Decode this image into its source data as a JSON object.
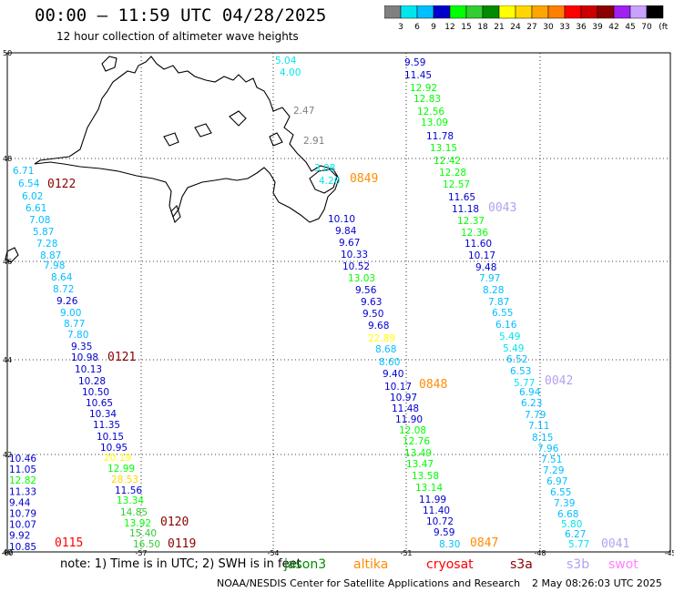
{
  "title": "00:00 – 11:59 UTC 04/28/2025",
  "subtitle": "12 hour collection of altimeter wave heights",
  "colorbar": {
    "unit_label": "(ft)",
    "ticks": [
      "3",
      "6",
      "9",
      "12",
      "15",
      "18",
      "21",
      "24",
      "27",
      "30",
      "33",
      "36",
      "39",
      "42",
      "45",
      "70"
    ],
    "colors": [
      "#808080",
      "#00e5ee",
      "#00bfff",
      "#0000cd",
      "#00ff00",
      "#32cd32",
      "#008b00",
      "#ffff00",
      "#ffd700",
      "#ffa500",
      "#ff7f00",
      "#ff0000",
      "#cd0000",
      "#8b0000",
      "#a020f0",
      "#c8a2ff",
      "#000000"
    ]
  },
  "axes": {
    "lat_labels": [
      "50",
      "48",
      "46",
      "44",
      "42",
      "40"
    ],
    "lon_labels": [
      "-60",
      "-57",
      "-54",
      "-51",
      "-48",
      "-45"
    ]
  },
  "tracks": [
    {
      "name": "jason3-left",
      "color": "#0000cd",
      "values": [
        {
          "v": "6.71",
          "c": "#00bfff"
        },
        {
          "v": "6.54",
          "c": "#00bfff"
        },
        {
          "v": "6.02",
          "c": "#00bfff"
        },
        {
          "v": "6.61",
          "c": "#00bfff"
        },
        {
          "v": "7.08",
          "c": "#00bfff"
        },
        {
          "v": "5.87",
          "c": "#00bfff"
        },
        {
          "v": "7.28",
          "c": "#00bfff"
        },
        {
          "v": "8.87",
          "c": "#00bfff"
        },
        {
          "v": "7.98",
          "c": "#00bfff"
        },
        {
          "v": "8.64",
          "c": "#00bfff"
        },
        {
          "v": "8.72",
          "c": "#00bfff"
        },
        {
          "v": "9.26",
          "c": "#0000cd"
        },
        {
          "v": "9.00",
          "c": "#00bfff"
        },
        {
          "v": "8.77",
          "c": "#00bfff"
        },
        {
          "v": "7.80",
          "c": "#00bfff"
        },
        {
          "v": "9.35",
          "c": "#0000cd"
        },
        {
          "v": "10.98",
          "c": "#0000cd"
        },
        {
          "v": "10.13",
          "c": "#0000cd"
        },
        {
          "v": "10.28",
          "c": "#0000cd"
        },
        {
          "v": "10.50",
          "c": "#0000cd"
        },
        {
          "v": "10.65",
          "c": "#0000cd"
        },
        {
          "v": "10.34",
          "c": "#0000cd"
        },
        {
          "v": "11.35",
          "c": "#0000cd"
        },
        {
          "v": "10.15",
          "c": "#0000cd"
        },
        {
          "v": "10.95",
          "c": "#0000cd"
        },
        {
          "v": "20.19",
          "c": "#ffff00"
        },
        {
          "v": "12.99",
          "c": "#00ff00"
        },
        {
          "v": "28.53",
          "c": "#ffd700"
        },
        {
          "v": "11.56",
          "c": "#0000cd"
        },
        {
          "v": "13.34",
          "c": "#00ff00"
        },
        {
          "v": "14.85",
          "c": "#32cd32"
        },
        {
          "v": "13.92",
          "c": "#00ff00"
        },
        {
          "v": "15.40",
          "c": "#32cd32"
        },
        {
          "v": "16.50",
          "c": "#32cd32"
        }
      ]
    },
    {
      "name": "bottom-left-column",
      "values": [
        {
          "v": "10.46",
          "c": "#0000cd"
        },
        {
          "v": "11.05",
          "c": "#0000cd"
        },
        {
          "v": "12.82",
          "c": "#00ff00"
        },
        {
          "v": "11.33",
          "c": "#0000cd"
        },
        {
          "v": "9.44",
          "c": "#0000cd"
        },
        {
          "v": "10.79",
          "c": "#0000cd"
        },
        {
          "v": "10.07",
          "c": "#0000cd"
        },
        {
          "v": "9.92",
          "c": "#0000cd"
        },
        {
          "v": "10.85",
          "c": "#0000cd"
        }
      ]
    },
    {
      "name": "middle-track",
      "values": [
        {
          "v": "5.04",
          "c": "#00e5ee"
        },
        {
          "v": "4.00",
          "c": "#00e5ee"
        },
        {
          "v": "2.47",
          "c": "#808080"
        },
        {
          "v": "2.91",
          "c": "#808080"
        },
        {
          "v": "3.08",
          "c": "#00e5ee"
        },
        {
          "v": "4.20",
          "c": "#00e5ee"
        },
        {
          "v": "10.10",
          "c": "#0000cd"
        },
        {
          "v": "9.84",
          "c": "#0000cd"
        },
        {
          "v": "9.67",
          "c": "#0000cd"
        },
        {
          "v": "10.33",
          "c": "#0000cd"
        },
        {
          "v": "10.52",
          "c": "#0000cd"
        },
        {
          "v": "13.03",
          "c": "#00ff00"
        },
        {
          "v": "9.56",
          "c": "#0000cd"
        },
        {
          "v": "9.63",
          "c": "#0000cd"
        },
        {
          "v": "9.50",
          "c": "#0000cd"
        },
        {
          "v": "9.68",
          "c": "#0000cd"
        },
        {
          "v": "22.89",
          "c": "#ffff00"
        },
        {
          "v": "8.68",
          "c": "#00bfff"
        },
        {
          "v": "8.60",
          "c": "#00bfff"
        },
        {
          "v": "9.40",
          "c": "#0000cd"
        },
        {
          "v": "10.17",
          "c": "#0000cd"
        },
        {
          "v": "10.97",
          "c": "#0000cd"
        },
        {
          "v": "11.48",
          "c": "#0000cd"
        },
        {
          "v": "11.90",
          "c": "#0000cd"
        },
        {
          "v": "12.08",
          "c": "#00ff00"
        },
        {
          "v": "12.76",
          "c": "#00ff00"
        },
        {
          "v": "13.49",
          "c": "#00ff00"
        },
        {
          "v": "13.47",
          "c": "#00ff00"
        },
        {
          "v": "13.58",
          "c": "#00ff00"
        },
        {
          "v": "13.14",
          "c": "#00ff00"
        },
        {
          "v": "11.99",
          "c": "#0000cd"
        },
        {
          "v": "11.40",
          "c": "#0000cd"
        },
        {
          "v": "10.72",
          "c": "#0000cd"
        },
        {
          "v": "9.59",
          "c": "#0000cd"
        },
        {
          "v": "8.30",
          "c": "#00bfff"
        }
      ]
    },
    {
      "name": "right-track-upper",
      "values": [
        {
          "v": "9.59",
          "c": "#0000cd"
        },
        {
          "v": "11.45",
          "c": "#0000cd"
        },
        {
          "v": "12.92",
          "c": "#00ff00"
        },
        {
          "v": "12.83",
          "c": "#00ff00"
        },
        {
          "v": "12.56",
          "c": "#00ff00"
        },
        {
          "v": "13.09",
          "c": "#00ff00"
        },
        {
          "v": "11.78",
          "c": "#0000cd"
        },
        {
          "v": "13.15",
          "c": "#00ff00"
        },
        {
          "v": "12.42",
          "c": "#00ff00"
        },
        {
          "v": "12.28",
          "c": "#00ff00"
        },
        {
          "v": "12.57",
          "c": "#00ff00"
        },
        {
          "v": "11.65",
          "c": "#0000cd"
        },
        {
          "v": "11.18",
          "c": "#0000cd"
        },
        {
          "v": "12.37",
          "c": "#00ff00"
        },
        {
          "v": "12.36",
          "c": "#00ff00"
        },
        {
          "v": "11.60",
          "c": "#0000cd"
        },
        {
          "v": "10.17",
          "c": "#0000cd"
        },
        {
          "v": "9.48",
          "c": "#0000cd"
        },
        {
          "v": "7.97",
          "c": "#00bfff"
        },
        {
          "v": "8.28",
          "c": "#00bfff"
        },
        {
          "v": "7.87",
          "c": "#00bfff"
        },
        {
          "v": "6.55",
          "c": "#00bfff"
        },
        {
          "v": "6.16",
          "c": "#00bfff"
        },
        {
          "v": "5.49",
          "c": "#00e5ee"
        },
        {
          "v": "5.49",
          "c": "#00e5ee"
        },
        {
          "v": "6.52",
          "c": "#00bfff"
        },
        {
          "v": "6.53",
          "c": "#00bfff"
        },
        {
          "v": "5.77",
          "c": "#00e5ee"
        },
        {
          "v": "6.94",
          "c": "#00bfff"
        },
        {
          "v": "6.23",
          "c": "#00bfff"
        },
        {
          "v": "7.79",
          "c": "#00bfff"
        },
        {
          "v": "7.11",
          "c": "#00bfff"
        },
        {
          "v": "8.15",
          "c": "#00bfff"
        },
        {
          "v": "7.96",
          "c": "#00bfff"
        },
        {
          "v": "7.51",
          "c": "#00bfff"
        },
        {
          "v": "7.29",
          "c": "#00bfff"
        },
        {
          "v": "6.97",
          "c": "#00bfff"
        },
        {
          "v": "6.55",
          "c": "#00bfff"
        },
        {
          "v": "7.39",
          "c": "#00bfff"
        },
        {
          "v": "6.68",
          "c": "#00bfff"
        },
        {
          "v": "5.80",
          "c": "#00e5ee"
        },
        {
          "v": "6.27",
          "c": "#00bfff"
        },
        {
          "v": "5.77",
          "c": "#00e5ee"
        }
      ]
    }
  ],
  "pass_labels": [
    {
      "text": "0122",
      "color": "#8b0000"
    },
    {
      "text": "0849",
      "color": "#ff8c00"
    },
    {
      "text": "0043",
      "color": "#b4a0f0"
    },
    {
      "text": "0121",
      "color": "#8b0000"
    },
    {
      "text": "0848",
      "color": "#ff8c00"
    },
    {
      "text": "0042",
      "color": "#b4a0f0"
    },
    {
      "text": "0120",
      "color": "#8b0000"
    },
    {
      "text": "0115",
      "color": "#ff0000"
    },
    {
      "text": "0119",
      "color": "#8b0000"
    },
    {
      "text": "0847",
      "color": "#ff8c00"
    },
    {
      "text": "0041",
      "color": "#b4a0f0"
    }
  ],
  "note": {
    "text": "note: 1) Time is in UTC; 2) SWH is in feet",
    "satellites": [
      {
        "name": "jason3",
        "color": "#008b00"
      },
      {
        "name": "altika",
        "color": "#ff8c00"
      },
      {
        "name": "cryosat",
        "color": "#ff0000"
      },
      {
        "name": "s3a",
        "color": "#8b0000"
      },
      {
        "name": "s3b",
        "color": "#b4a0f0"
      },
      {
        "name": "swot",
        "color": "#ff80ff"
      }
    ]
  },
  "credit": "NOAA/NESDIS Center for Satellite Applications and Research",
  "timestamp": "2 May 08:26:03 UTC 2025"
}
